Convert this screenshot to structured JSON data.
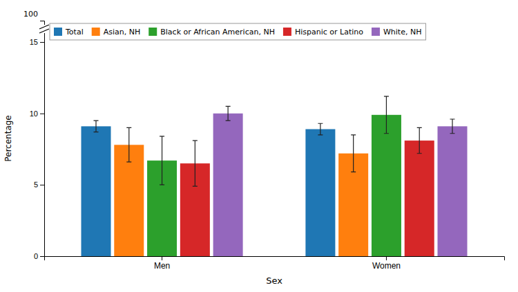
{
  "chart_data": {
    "type": "bar",
    "categories": [
      "Men",
      "Women"
    ],
    "series": [
      {
        "name": "Total",
        "values": [
          9.1,
          8.9
        ],
        "errors": [
          0.4,
          0.4
        ]
      },
      {
        "name": "Asian, NH",
        "values": [
          7.8,
          7.2
        ],
        "errors": [
          1.2,
          1.3
        ]
      },
      {
        "name": "Black or African American, NH",
        "values": [
          6.7,
          9.9
        ],
        "errors": [
          1.7,
          1.3
        ]
      },
      {
        "name": "Hispanic or Latino",
        "values": [
          6.5,
          8.1
        ],
        "errors": [
          1.6,
          0.9
        ]
      },
      {
        "name": "White, NH",
        "values": [
          10.0,
          9.1
        ],
        "errors": [
          0.5,
          0.5
        ]
      }
    ],
    "xlabel": "Sex",
    "ylabel": "Percentage",
    "ylim": [
      0,
      16.5
    ],
    "yticks": [
      0,
      5,
      10,
      15
    ],
    "annotations": [
      "100"
    ],
    "legend": "upper left",
    "grid": false
  }
}
